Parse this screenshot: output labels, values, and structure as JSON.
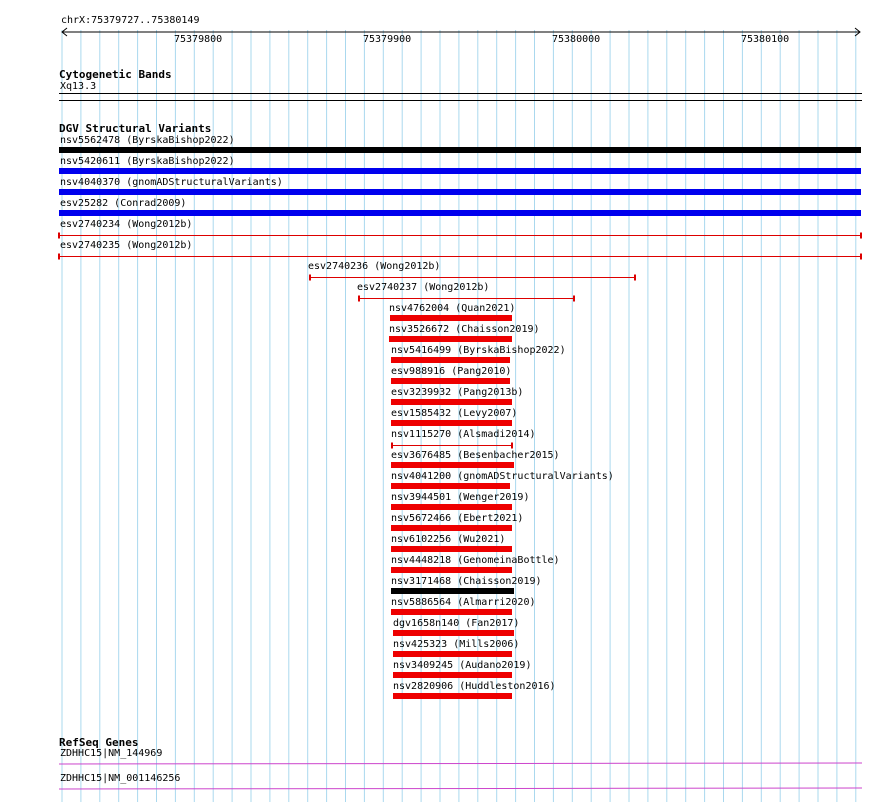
{
  "ruler": {
    "location": "chrX:75379727..75380149",
    "ticks": [
      "75379800",
      "75379900",
      "75380000",
      "75380100"
    ]
  },
  "cytoband": {
    "title": "Cytogenetic Bands",
    "band": "Xq13.3"
  },
  "dgv": {
    "title": "DGV Structural Variants",
    "features": [
      {
        "label": "nsv5562478 (ByrskaBishop2022)",
        "color": "#000000",
        "style": "bar"
      },
      {
        "label": "nsv5420611 (ByrskaBishop2022)",
        "color": "#0000ee",
        "style": "bar"
      },
      {
        "label": "nsv4040370 (gnomADStructuralVariants)",
        "color": "#0000ee",
        "style": "bar"
      },
      {
        "label": "esv25282 (Conrad2009)",
        "color": "#0000ee",
        "style": "bar"
      },
      {
        "label": "esv2740234 (Wong2012b)",
        "color": "#dd0000",
        "style": "line"
      },
      {
        "label": "esv2740235 (Wong2012b)",
        "color": "#dd0000",
        "style": "line"
      },
      {
        "label": "esv2740236 (Wong2012b)",
        "color": "#dd0000",
        "style": "line"
      },
      {
        "label": "esv2740237 (Wong2012b)",
        "color": "#dd0000",
        "style": "line"
      },
      {
        "label": "nsv4762004 (Quan2021)",
        "color": "#ee0000",
        "style": "bar"
      },
      {
        "label": "nsv3526672 (Chaisson2019)",
        "color": "#ee0000",
        "style": "bar"
      },
      {
        "label": "nsv5416499 (ByrskaBishop2022)",
        "color": "#ee0000",
        "style": "bar"
      },
      {
        "label": "esv988916 (Pang2010)",
        "color": "#ee0000",
        "style": "bar"
      },
      {
        "label": "esv3239932 (Pang2013b)",
        "color": "#ee0000",
        "style": "bar"
      },
      {
        "label": "esv1585432 (Levy2007)",
        "color": "#ee0000",
        "style": "bar"
      },
      {
        "label": "nsv1115270 (Alsmadi2014)",
        "color": "#dd0000",
        "style": "line"
      },
      {
        "label": "esv3676485 (Besenbacher2015)",
        "color": "#ee0000",
        "style": "bar"
      },
      {
        "label": "nsv4041200 (gnomADStructuralVariants)",
        "color": "#ee0000",
        "style": "bar"
      },
      {
        "label": "nsv3944501 (Wenger2019)",
        "color": "#ee0000",
        "style": "bar"
      },
      {
        "label": "nsv5672466 (Ebert2021)",
        "color": "#ee0000",
        "style": "bar"
      },
      {
        "label": "nsv6102256 (Wu2021)",
        "color": "#ee0000",
        "style": "bar"
      },
      {
        "label": "nsv4448218 (GenomeinaBottle)",
        "color": "#ee0000",
        "style": "bar"
      },
      {
        "label": "nsv3171468 (Chaisson2019)",
        "color": "#000000",
        "style": "bar"
      },
      {
        "label": "nsv5886564 (Almarri2020)",
        "color": "#ee0000",
        "style": "bar"
      },
      {
        "label": "dgv1658n140 (Fan2017)",
        "color": "#ee0000",
        "style": "bar"
      },
      {
        "label": "nsv425323 (Mills2006)",
        "color": "#ee0000",
        "style": "bar"
      },
      {
        "label": "nsv3409245 (Audano2019)",
        "color": "#ee0000",
        "style": "bar"
      },
      {
        "label": "nsv2820906 (Huddleston2016)",
        "color": "#ee0000",
        "style": "bar"
      }
    ]
  },
  "refseq": {
    "title": "RefSeq Genes",
    "genes": [
      {
        "label": "ZDHHC15|NM_144969",
        "color": "#cc44cc"
      },
      {
        "label": "ZDHHC15|NM_001146256",
        "color": "#cc44cc"
      }
    ]
  }
}
